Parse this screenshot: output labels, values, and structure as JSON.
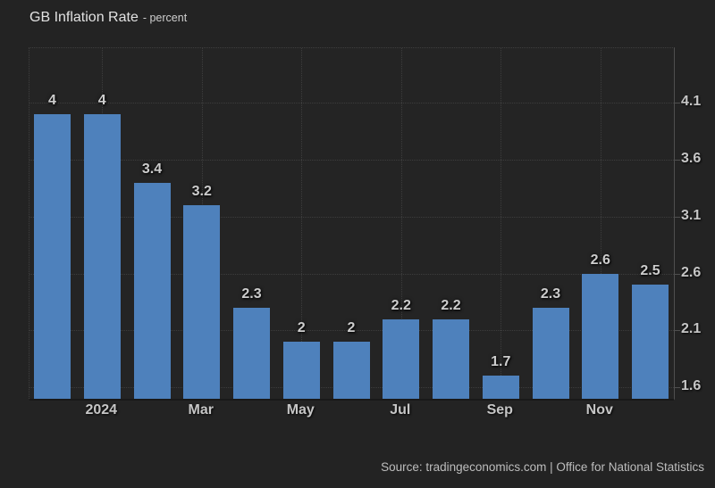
{
  "header": {
    "title": "GB Inflation Rate",
    "subtitle": "- percent"
  },
  "footer": {
    "source": "Source: tradingeconomics.com | Office for National Statistics"
  },
  "colors": {
    "background": "#232323",
    "bar": "#4e81bc",
    "grid": "#3d3d3d",
    "axis": "#4f4f4f",
    "label": "#cdcdcd"
  },
  "chart_data": {
    "type": "bar",
    "title": "GB Inflation Rate",
    "ylabel": "percent",
    "xlabel": "",
    "legend": false,
    "grid": "dotted",
    "ylim": [
      1.5,
      4.58
    ],
    "bar_color": "#4e81bc",
    "bars": [
      {
        "label": "4",
        "value": 4.0
      },
      {
        "label": "4",
        "value": 4.0
      },
      {
        "label": "3.4",
        "value": 3.4
      },
      {
        "label": "3.2",
        "value": 3.2
      },
      {
        "label": "2.3",
        "value": 2.3
      },
      {
        "label": "2",
        "value": 2.0
      },
      {
        "label": "2",
        "value": 2.0
      },
      {
        "label": "2.2",
        "value": 2.2
      },
      {
        "label": "2.2",
        "value": 2.2
      },
      {
        "label": "1.7",
        "value": 1.7
      },
      {
        "label": "2.3",
        "value": 2.3
      },
      {
        "label": "2.6",
        "value": 2.6
      },
      {
        "label": "2.5",
        "value": 2.5
      }
    ],
    "x_ticks": [
      {
        "label": "2024",
        "bar": 1
      },
      {
        "label": "Mar",
        "bar": 3
      },
      {
        "label": "May",
        "bar": 5
      },
      {
        "label": "Jul",
        "bar": 7
      },
      {
        "label": "Sep",
        "bar": 9
      },
      {
        "label": "Nov",
        "bar": 11
      }
    ],
    "y_ticks": [
      {
        "label": "4.1",
        "value": 4.1
      },
      {
        "label": "3.6",
        "value": 3.6
      },
      {
        "label": "3.1",
        "value": 3.1
      },
      {
        "label": "2.6",
        "value": 2.6
      },
      {
        "label": "2.1",
        "value": 2.1
      },
      {
        "label": "1.6",
        "value": 1.6
      }
    ]
  }
}
